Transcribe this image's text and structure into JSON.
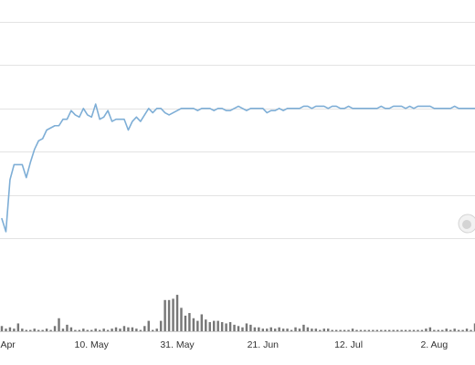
{
  "chart_data": {
    "type": "line",
    "title": "",
    "xlabel": "",
    "ylabel": "",
    "grid": true,
    "colors": {
      "line": "#7eaed6",
      "bars": "#777777",
      "grid": "#e3e3e3",
      "watermark": "#d4d4d4"
    },
    "x_tick_labels": [
      "Apr",
      "10. May",
      "31. May",
      "21. Jun",
      "12. Jul",
      "2. Aug"
    ],
    "x_ticks": [
      "2023-04-19",
      "2023-05-10",
      "2023-05-31",
      "2023-06-21",
      "2023-07-12",
      "2023-08-02"
    ],
    "xlim": [
      "2023-04-18",
      "2023-08-12"
    ],
    "ylim": [
      0,
      100
    ],
    "y_gridlines": [
      0,
      20,
      40,
      60,
      80,
      100
    ],
    "series": [
      {
        "values": [
          [
            "2023-04-18",
            9
          ],
          [
            "2023-04-19",
            3
          ],
          [
            "2023-04-20",
            27
          ],
          [
            "2023-04-21",
            34
          ],
          [
            "2023-04-22",
            34
          ],
          [
            "2023-04-23",
            34
          ],
          [
            "2023-04-24",
            28
          ],
          [
            "2023-04-25",
            35
          ],
          [
            "2023-04-26",
            41
          ],
          [
            "2023-04-27",
            45
          ],
          [
            "2023-04-28",
            46
          ],
          [
            "2023-04-29",
            50
          ],
          [
            "2023-04-30",
            51
          ],
          [
            "2023-05-01",
            52
          ],
          [
            "2023-05-02",
            52
          ],
          [
            "2023-05-03",
            55
          ],
          [
            "2023-05-04",
            55
          ],
          [
            "2023-05-05",
            59
          ],
          [
            "2023-05-06",
            57
          ],
          [
            "2023-05-07",
            56
          ],
          [
            "2023-05-08",
            60
          ],
          [
            "2023-05-09",
            57
          ],
          [
            "2023-05-10",
            56
          ],
          [
            "2023-05-11",
            62
          ],
          [
            "2023-05-12",
            55
          ],
          [
            "2023-05-13",
            56
          ],
          [
            "2023-05-14",
            59
          ],
          [
            "2023-05-15",
            54
          ],
          [
            "2023-05-16",
            55
          ],
          [
            "2023-05-17",
            55
          ],
          [
            "2023-05-18",
            55
          ],
          [
            "2023-05-19",
            50
          ],
          [
            "2023-05-20",
            54
          ],
          [
            "2023-05-21",
            56
          ],
          [
            "2023-05-22",
            54
          ],
          [
            "2023-05-23",
            57
          ],
          [
            "2023-05-24",
            60
          ],
          [
            "2023-05-25",
            58
          ],
          [
            "2023-05-26",
            60
          ],
          [
            "2023-05-27",
            60
          ],
          [
            "2023-05-28",
            58
          ],
          [
            "2023-05-29",
            57
          ],
          [
            "2023-05-30",
            58
          ],
          [
            "2023-05-31",
            59
          ],
          [
            "2023-06-01",
            60
          ],
          [
            "2023-06-02",
            60
          ],
          [
            "2023-06-03",
            60
          ],
          [
            "2023-06-04",
            60
          ],
          [
            "2023-06-05",
            59
          ],
          [
            "2023-06-06",
            60
          ],
          [
            "2023-06-07",
            60
          ],
          [
            "2023-06-08",
            60
          ],
          [
            "2023-06-09",
            59
          ],
          [
            "2023-06-10",
            60
          ],
          [
            "2023-06-11",
            60
          ],
          [
            "2023-06-12",
            59
          ],
          [
            "2023-06-13",
            59
          ],
          [
            "2023-06-14",
            60
          ],
          [
            "2023-06-15",
            61
          ],
          [
            "2023-06-16",
            60
          ],
          [
            "2023-06-17",
            59
          ],
          [
            "2023-06-18",
            60
          ],
          [
            "2023-06-19",
            60
          ],
          [
            "2023-06-20",
            60
          ],
          [
            "2023-06-21",
            60
          ],
          [
            "2023-06-22",
            58
          ],
          [
            "2023-06-23",
            59
          ],
          [
            "2023-06-24",
            59
          ],
          [
            "2023-06-25",
            60
          ],
          [
            "2023-06-26",
            59
          ],
          [
            "2023-06-27",
            60
          ],
          [
            "2023-06-28",
            60
          ],
          [
            "2023-06-29",
            60
          ],
          [
            "2023-06-30",
            60
          ],
          [
            "2023-07-01",
            61
          ],
          [
            "2023-07-02",
            61
          ],
          [
            "2023-07-03",
            60
          ],
          [
            "2023-07-04",
            61
          ],
          [
            "2023-07-05",
            61
          ],
          [
            "2023-07-06",
            61
          ],
          [
            "2023-07-07",
            60
          ],
          [
            "2023-07-08",
            61
          ],
          [
            "2023-07-09",
            61
          ],
          [
            "2023-07-10",
            60
          ],
          [
            "2023-07-11",
            60
          ],
          [
            "2023-07-12",
            61
          ],
          [
            "2023-07-13",
            60
          ],
          [
            "2023-07-14",
            60
          ],
          [
            "2023-07-15",
            60
          ],
          [
            "2023-07-16",
            60
          ],
          [
            "2023-07-17",
            60
          ],
          [
            "2023-07-18",
            60
          ],
          [
            "2023-07-19",
            60
          ],
          [
            "2023-07-20",
            61
          ],
          [
            "2023-07-21",
            60
          ],
          [
            "2023-07-22",
            60
          ],
          [
            "2023-07-23",
            61
          ],
          [
            "2023-07-24",
            61
          ],
          [
            "2023-07-25",
            61
          ],
          [
            "2023-07-26",
            60
          ],
          [
            "2023-07-27",
            61
          ],
          [
            "2023-07-28",
            60
          ],
          [
            "2023-07-29",
            61
          ],
          [
            "2023-07-30",
            61
          ],
          [
            "2023-07-31",
            61
          ],
          [
            "2023-08-01",
            61
          ],
          [
            "2023-08-02",
            60
          ],
          [
            "2023-08-03",
            60
          ],
          [
            "2023-08-04",
            60
          ],
          [
            "2023-08-05",
            60
          ],
          [
            "2023-08-06",
            60
          ],
          [
            "2023-08-07",
            61
          ],
          [
            "2023-08-08",
            60
          ],
          [
            "2023-08-09",
            60
          ],
          [
            "2023-08-10",
            60
          ],
          [
            "2023-08-11",
            60
          ],
          [
            "2023-08-12",
            60
          ]
        ]
      }
    ],
    "volume": {
      "ylim": [
        0,
        40
      ],
      "values": [
        [
          "2023-04-18",
          4
        ],
        [
          "2023-04-19",
          2
        ],
        [
          "2023-04-20",
          3
        ],
        [
          "2023-04-21",
          2
        ],
        [
          "2023-04-22",
          6
        ],
        [
          "2023-04-23",
          2
        ],
        [
          "2023-04-24",
          1
        ],
        [
          "2023-04-25",
          1
        ],
        [
          "2023-04-26",
          2
        ],
        [
          "2023-04-27",
          1
        ],
        [
          "2023-04-28",
          1
        ],
        [
          "2023-04-29",
          2
        ],
        [
          "2023-04-30",
          1
        ],
        [
          "2023-05-01",
          4
        ],
        [
          "2023-05-02",
          10
        ],
        [
          "2023-05-03",
          2
        ],
        [
          "2023-05-04",
          5
        ],
        [
          "2023-05-05",
          3
        ],
        [
          "2023-05-06",
          1
        ],
        [
          "2023-05-07",
          1
        ],
        [
          "2023-05-08",
          2
        ],
        [
          "2023-05-09",
          1
        ],
        [
          "2023-05-10",
          1
        ],
        [
          "2023-05-11",
          2
        ],
        [
          "2023-05-12",
          1
        ],
        [
          "2023-05-13",
          2
        ],
        [
          "2023-05-14",
          1
        ],
        [
          "2023-05-15",
          2
        ],
        [
          "2023-05-16",
          3
        ],
        [
          "2023-05-17",
          2
        ],
        [
          "2023-05-18",
          4
        ],
        [
          "2023-05-19",
          3
        ],
        [
          "2023-05-20",
          3
        ],
        [
          "2023-05-21",
          2
        ],
        [
          "2023-05-22",
          1
        ],
        [
          "2023-05-23",
          4
        ],
        [
          "2023-05-24",
          8
        ],
        [
          "2023-05-25",
          1
        ],
        [
          "2023-05-26",
          2
        ],
        [
          "2023-05-27",
          8
        ],
        [
          "2023-05-28",
          24
        ],
        [
          "2023-05-29",
          24
        ],
        [
          "2023-05-30",
          25
        ],
        [
          "2023-05-31",
          28
        ],
        [
          "2023-06-01",
          18
        ],
        [
          "2023-06-02",
          12
        ],
        [
          "2023-06-03",
          14
        ],
        [
          "2023-06-04",
          10
        ],
        [
          "2023-06-05",
          8
        ],
        [
          "2023-06-06",
          13
        ],
        [
          "2023-06-07",
          9
        ],
        [
          "2023-06-08",
          7
        ],
        [
          "2023-06-09",
          8
        ],
        [
          "2023-06-10",
          8
        ],
        [
          "2023-06-11",
          7
        ],
        [
          "2023-06-12",
          6
        ],
        [
          "2023-06-13",
          7
        ],
        [
          "2023-06-14",
          5
        ],
        [
          "2023-06-15",
          4
        ],
        [
          "2023-06-16",
          3
        ],
        [
          "2023-06-17",
          6
        ],
        [
          "2023-06-18",
          5
        ],
        [
          "2023-06-19",
          3
        ],
        [
          "2023-06-20",
          3
        ],
        [
          "2023-06-21",
          2
        ],
        [
          "2023-06-22",
          2
        ],
        [
          "2023-06-23",
          3
        ],
        [
          "2023-06-24",
          2
        ],
        [
          "2023-06-25",
          3
        ],
        [
          "2023-06-26",
          2
        ],
        [
          "2023-06-27",
          2
        ],
        [
          "2023-06-28",
          1
        ],
        [
          "2023-06-29",
          3
        ],
        [
          "2023-06-30",
          2
        ],
        [
          "2023-07-01",
          5
        ],
        [
          "2023-07-02",
          3
        ],
        [
          "2023-07-03",
          2
        ],
        [
          "2023-07-04",
          2
        ],
        [
          "2023-07-05",
          1
        ],
        [
          "2023-07-06",
          2
        ],
        [
          "2023-07-07",
          2
        ],
        [
          "2023-07-08",
          1
        ],
        [
          "2023-07-09",
          1
        ],
        [
          "2023-07-10",
          1
        ],
        [
          "2023-07-11",
          1
        ],
        [
          "2023-07-12",
          1
        ],
        [
          "2023-07-13",
          2
        ],
        [
          "2023-07-14",
          1
        ],
        [
          "2023-07-15",
          1
        ],
        [
          "2023-07-16",
          1
        ],
        [
          "2023-07-17",
          1
        ],
        [
          "2023-07-18",
          1
        ],
        [
          "2023-07-19",
          1
        ],
        [
          "2023-07-20",
          1
        ],
        [
          "2023-07-21",
          1
        ],
        [
          "2023-07-22",
          1
        ],
        [
          "2023-07-23",
          1
        ],
        [
          "2023-07-24",
          1
        ],
        [
          "2023-07-25",
          1
        ],
        [
          "2023-07-26",
          1
        ],
        [
          "2023-07-27",
          1
        ],
        [
          "2023-07-28",
          1
        ],
        [
          "2023-07-29",
          1
        ],
        [
          "2023-07-30",
          1
        ],
        [
          "2023-07-31",
          2
        ],
        [
          "2023-08-01",
          3
        ],
        [
          "2023-08-02",
          1
        ],
        [
          "2023-08-03",
          1
        ],
        [
          "2023-08-04",
          1
        ],
        [
          "2023-08-05",
          2
        ],
        [
          "2023-08-06",
          1
        ],
        [
          "2023-08-07",
          2
        ],
        [
          "2023-08-08",
          1
        ],
        [
          "2023-08-09",
          1
        ],
        [
          "2023-08-10",
          2
        ],
        [
          "2023-08-11",
          1
        ],
        [
          "2023-08-12",
          6
        ]
      ]
    }
  }
}
